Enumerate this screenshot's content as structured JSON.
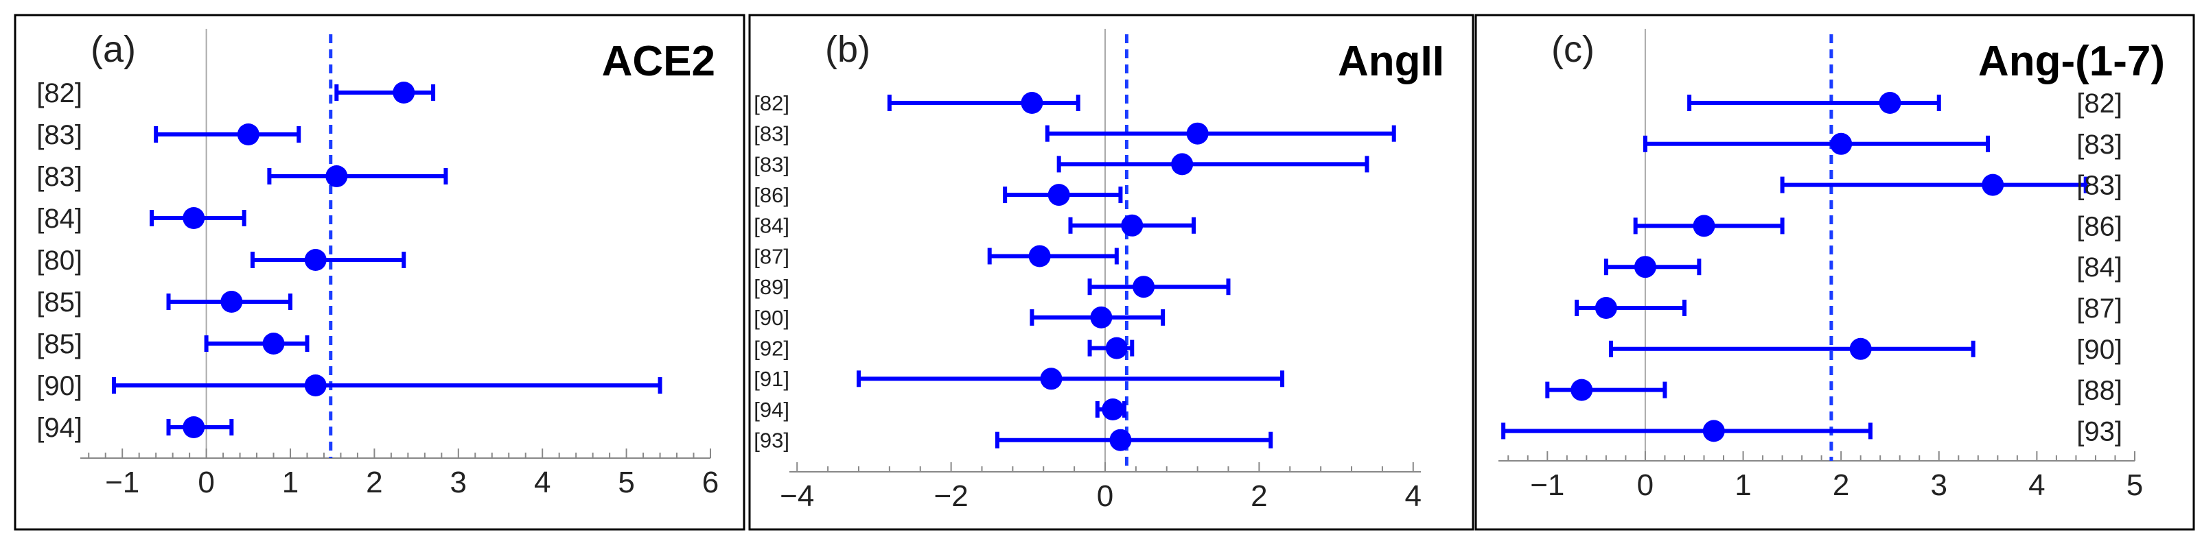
{
  "chart_data": [
    {
      "type": "forest",
      "panel_label": "(a)",
      "title": "ACE2",
      "study_labels": [
        "[82]",
        "[83]",
        "[83]",
        "[84]",
        "[80]",
        "[85]",
        "[85]",
        "[90]",
        "[94]"
      ],
      "values": [
        2.35,
        0.5,
        1.55,
        -0.15,
        1.3,
        0.3,
        0.8,
        1.3,
        -0.15
      ],
      "lower": [
        1.55,
        -0.6,
        0.75,
        -0.65,
        0.55,
        -0.45,
        0.0,
        -1.1,
        -0.45
      ],
      "upper": [
        2.7,
        1.1,
        2.85,
        0.45,
        2.35,
        1.0,
        1.2,
        5.4,
        0.3
      ],
      "pooled": 1.48,
      "xlim": [
        -1.5,
        6.0
      ],
      "xticks": [
        -1,
        0,
        1,
        2,
        3,
        4,
        5,
        6
      ],
      "xtick_labels": [
        "−1",
        "0",
        "1",
        "2",
        "3",
        "4",
        "5",
        "6"
      ],
      "label_side": "left"
    },
    {
      "type": "forest",
      "panel_label": "(b)",
      "title": "AngII",
      "study_labels": [
        "[82]",
        "[83]",
        "[83]",
        "[86]",
        "[84]",
        "[87]",
        "[89]",
        "[90]",
        "[92]",
        "[91]",
        "[94]",
        "[93]"
      ],
      "values": [
        -0.95,
        1.2,
        1.0,
        -0.6,
        0.35,
        -0.85,
        0.5,
        -0.05,
        0.15,
        -0.7,
        0.1,
        0.2
      ],
      "lower": [
        -2.8,
        -0.75,
        -0.6,
        -1.3,
        -0.45,
        -1.5,
        -0.2,
        -0.95,
        -0.2,
        -3.2,
        -0.1,
        -1.4
      ],
      "upper": [
        -0.35,
        3.75,
        3.4,
        0.2,
        1.15,
        0.15,
        1.6,
        0.75,
        0.35,
        2.3,
        0.25,
        2.15
      ],
      "pooled": 0.28,
      "xlim": [
        -4.1,
        4.1
      ],
      "xticks": [
        -4,
        -2,
        0,
        2,
        4
      ],
      "xtick_labels": [
        "−4",
        "−2",
        "0",
        "2",
        "4"
      ],
      "label_side": "left"
    },
    {
      "type": "forest",
      "panel_label": "(c)",
      "title": "Ang-(1-7)",
      "study_labels": [
        "[82]",
        "[83]",
        "[83]",
        "[86]",
        "[84]",
        "[87]",
        "[90]",
        "[88]",
        "[93]"
      ],
      "values": [
        2.5,
        2.0,
        3.55,
        0.6,
        0.0,
        -0.4,
        2.2,
        -0.65,
        0.7
      ],
      "lower": [
        0.45,
        0.0,
        1.4,
        -0.1,
        -0.4,
        -0.7,
        -0.35,
        -1.0,
        -1.45
      ],
      "upper": [
        3.0,
        3.5,
        4.5,
        1.4,
        0.55,
        0.4,
        3.35,
        0.2,
        2.3
      ],
      "pooled": 1.9,
      "xlim": [
        -1.5,
        5.0
      ],
      "xticks": [
        -1,
        0,
        1,
        2,
        3,
        4,
        5
      ],
      "xtick_labels": [
        "−1",
        "0",
        "1",
        "2",
        "3",
        "4",
        "5"
      ],
      "label_side": "right"
    }
  ],
  "colors": {
    "series": "#0000ff",
    "pooled_line": "#1a3cff",
    "zero_line": "#aaaaaa",
    "axis": "#888888",
    "frame": "#000000"
  }
}
